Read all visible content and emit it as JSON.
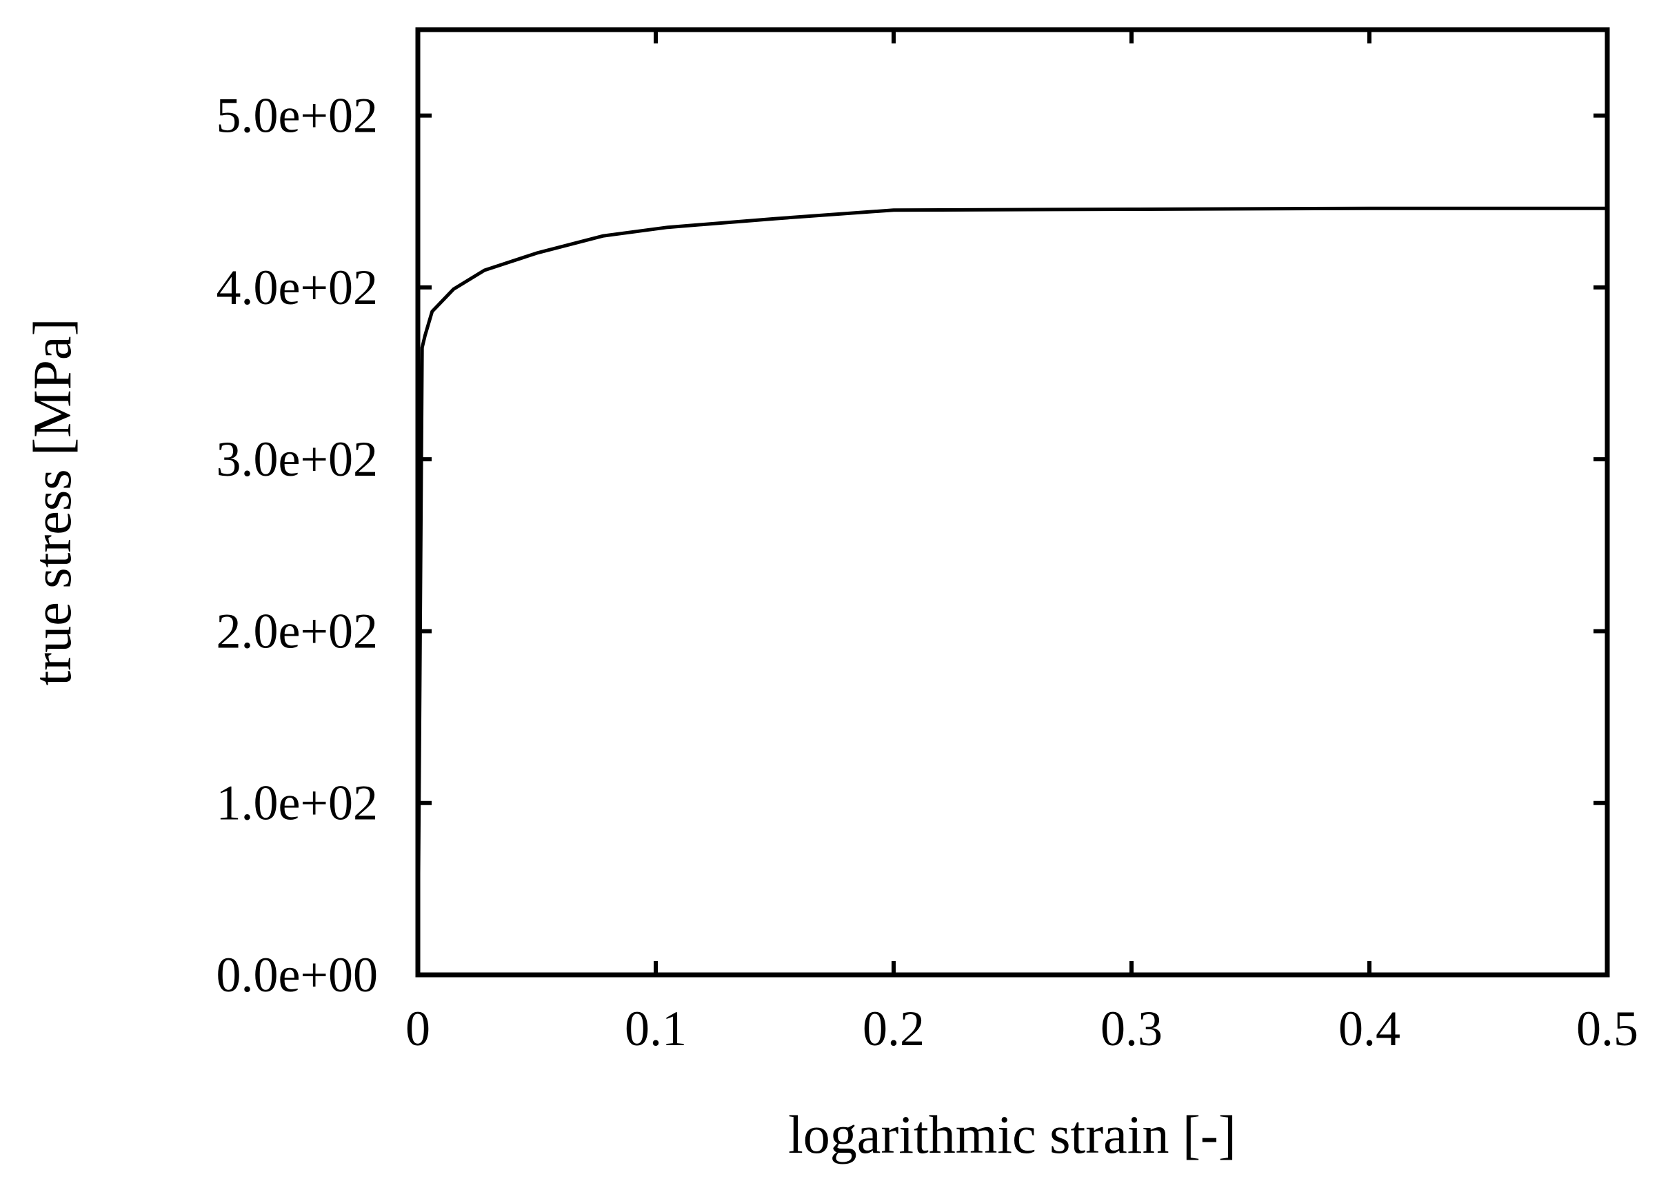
{
  "chart_data": {
    "type": "line",
    "title": "",
    "xlabel": "logarithmic strain  [-]",
    "ylabel": "true stress  [MPa]",
    "xlim": [
      0,
      0.5
    ],
    "ylim": [
      0,
      550
    ],
    "grid": false,
    "legend": "none",
    "x_ticks": [
      {
        "value": 0,
        "label": "0"
      },
      {
        "value": 0.1,
        "label": "0.1"
      },
      {
        "value": 0.2,
        "label": "0.2"
      },
      {
        "value": 0.3,
        "label": "0.3"
      },
      {
        "value": 0.4,
        "label": "0.4"
      },
      {
        "value": 0.5,
        "label": "0.5"
      }
    ],
    "y_ticks": [
      {
        "value": 0,
        "label": "0.0e+00"
      },
      {
        "value": 100,
        "label": "1.0e+02"
      },
      {
        "value": 200,
        "label": "2.0e+02"
      },
      {
        "value": 300,
        "label": "3.0e+02"
      },
      {
        "value": 400,
        "label": "4.0e+02"
      },
      {
        "value": 500,
        "label": "5.0e+02"
      }
    ],
    "series": [
      {
        "color": "#000000",
        "x": [
          0,
          0.0018,
          0.003,
          0.006,
          0.015,
          0.028,
          0.05,
          0.078,
          0.105,
          0.15,
          0.2,
          0.3,
          0.4,
          0.5
        ],
        "y": [
          0,
          365,
          372,
          386,
          399,
          410,
          420,
          430,
          435,
          440,
          445,
          445.5,
          446,
          446
        ]
      }
    ],
    "colors": {
      "line": "#000000",
      "axis": "#000000",
      "background": "#ffffff"
    }
  }
}
